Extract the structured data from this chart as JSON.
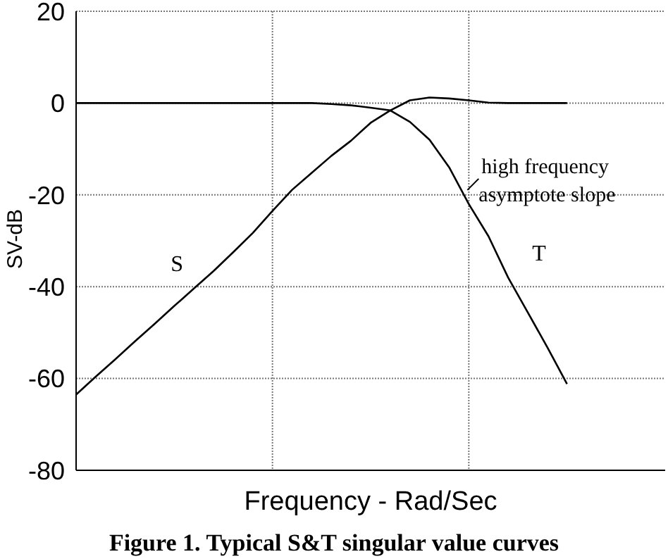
{
  "chart_data": {
    "type": "line",
    "xlabel": "Frequency - Rad/Sec",
    "ylabel": "SV-dB",
    "categories": [
      null,
      null,
      null,
      null,
      null,
      null,
      null,
      null,
      null,
      null,
      null,
      null,
      null,
      null,
      null,
      null,
      null,
      null,
      null,
      null,
      null,
      null,
      null,
      null,
      null,
      null,
      null,
      null,
      null,
      null,
      null
    ],
    "ylim": [
      -80,
      20
    ],
    "yticks": [
      -80,
      -60,
      -40,
      -20,
      0,
      20
    ],
    "grid": true,
    "legend": false,
    "marker": "none",
    "line_style": "solid",
    "series": [
      {
        "name": "S",
        "color": "#000000",
        "values": [
          -63.5,
          -59.6,
          -55.8,
          -51.9,
          -48.1,
          -44.2,
          -40.4,
          -36.6,
          -32.5,
          -28.3,
          -23.5,
          -18.9,
          -15.2,
          -11.5,
          -8.2,
          -4.3,
          -1.6,
          0.6,
          1.2,
          1,
          0.6,
          0.1,
          0,
          0,
          0,
          0,
          null,
          null,
          null,
          null,
          null
        ]
      },
      {
        "name": "T",
        "color": "#000000",
        "values": [
          0,
          0,
          0,
          0,
          0,
          0,
          0,
          0,
          0,
          0,
          0,
          0,
          0,
          -0.2,
          -0.5,
          -1,
          -1.6,
          -4.1,
          -8,
          -14,
          -22,
          -29,
          -38,
          -45.6,
          -53.2,
          -61.2,
          null,
          null,
          null,
          null,
          null
        ]
      }
    ],
    "annotations": [
      "high frequency asymptote slope",
      "Figure 1. Typical S&T singular value curves"
    ]
  }
}
